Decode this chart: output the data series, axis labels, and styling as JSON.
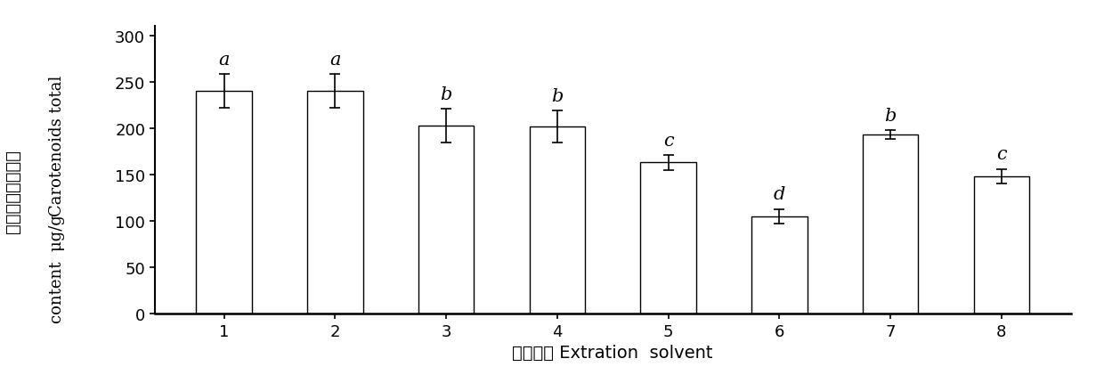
{
  "categories": [
    "1",
    "2",
    "3",
    "4",
    "5",
    "6",
    "7",
    "8"
  ],
  "values": [
    240,
    240,
    203,
    202,
    163,
    105,
    193,
    148
  ],
  "errors": [
    18,
    18,
    18,
    17,
    8,
    8,
    5,
    8
  ],
  "letters": [
    "a",
    "a",
    "b",
    "b",
    "c",
    "d",
    "b",
    "c"
  ],
  "bar_color": "#ffffff",
  "bar_edgecolor": "#000000",
  "ylabel_cn": "类胡萝卜素总含量",
  "ylabel_en1": "Carotenoids total",
  "ylabel_en2": "content  μg/g",
  "xlabel": "浸提试剂 Extration  solvent",
  "ylim": [
    0,
    310
  ],
  "yticks": [
    0,
    50,
    100,
    150,
    200,
    250,
    300
  ],
  "letter_fontsize": 15,
  "tick_fontsize": 13,
  "label_fontsize": 14,
  "bar_width": 0.5
}
